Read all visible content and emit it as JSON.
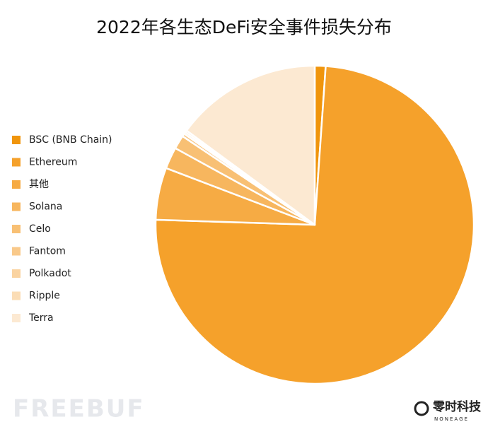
{
  "chart_data": {
    "type": "pie",
    "title": "2022年各生态DeFi安全事件损失分布",
    "categories": [
      "BSC (BNB Chain)",
      "Ethereum",
      "其他",
      "Solana",
      "Celo",
      "Fantom",
      "Polkadot",
      "Ripple",
      "Terra"
    ],
    "values": [
      1.1,
      74.4,
      5.3,
      2.2,
      1.4,
      0.3,
      0.2,
      0.2,
      14.9
    ],
    "colors": [
      "#f0950c",
      "#f5a12b",
      "#f6ab44",
      "#f7b65e",
      "#f8c074",
      "#f9c98a",
      "#fad3a0",
      "#fbddb6",
      "#fce9d2"
    ],
    "legend": "left"
  },
  "watermarks": [
    "FREEBUF",
    "零时科技",
    "NONEAGE"
  ]
}
